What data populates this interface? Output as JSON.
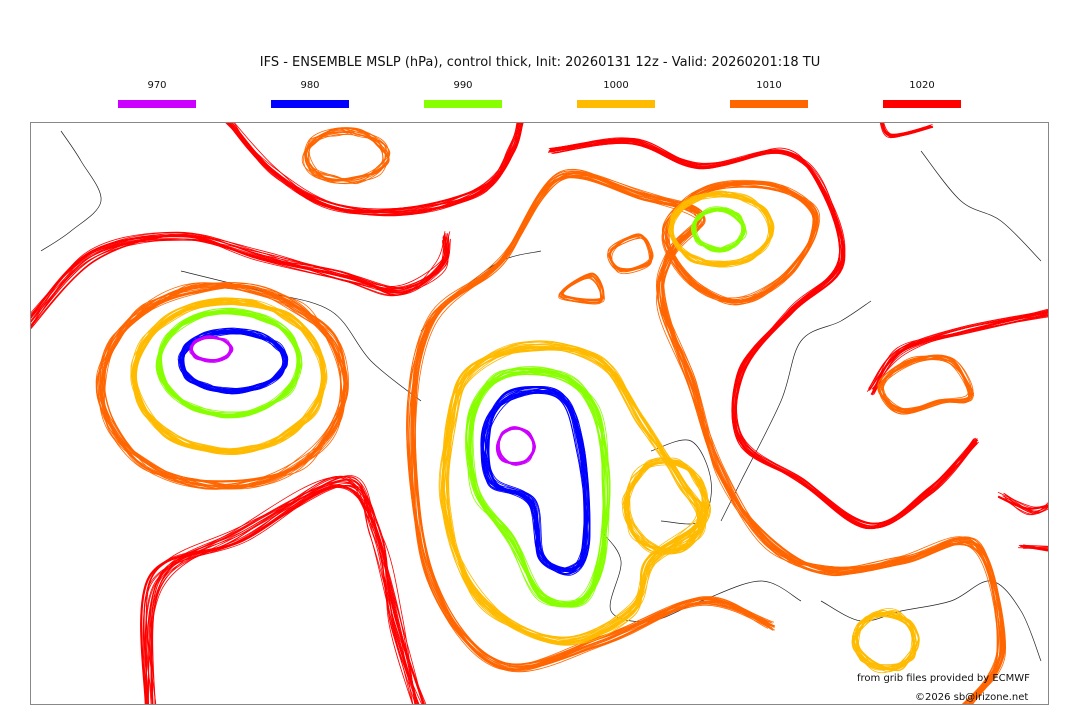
{
  "title": "IFS - ENSEMBLE MSLP (hPa), control thick, Init: 20260131 12z - Valid: 20260201:18 TU",
  "legend": [
    {
      "label": "970",
      "color": "#cc00ff"
    },
    {
      "label": "980",
      "color": "#0000ff"
    },
    {
      "label": "990",
      "color": "#88ff00"
    },
    {
      "label": "1000",
      "color": "#ffbb00"
    },
    {
      "label": "1010",
      "color": "#ff6600"
    },
    {
      "label": "1020",
      "color": "#ff0000"
    }
  ],
  "credits": {
    "source": "from grib files provided by ECMWF",
    "copyright": "©2026 sb@irizone.net"
  }
}
